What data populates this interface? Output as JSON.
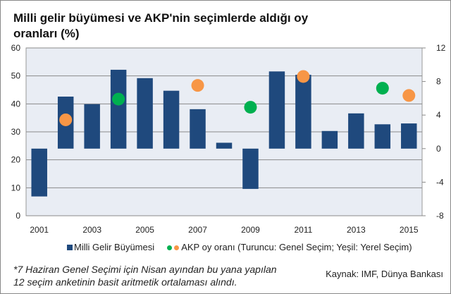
{
  "chart_data": {
    "type": "bar",
    "title": "Milli  gelir büyümesi ve AKP'nin seçimlerde aldığı oy oranları (%)",
    "categories": [
      "2001",
      "2002",
      "2003",
      "2004",
      "2005",
      "2006",
      "2007",
      "2008",
      "2009",
      "2010",
      "2011",
      "2012",
      "2013",
      "2014",
      "2015"
    ],
    "x_tick_labels": [
      "2001",
      "2003",
      "2005",
      "2007",
      "2009",
      "2011",
      "2013",
      "2015"
    ],
    "left_axis": {
      "ylim": [
        0,
        60
      ],
      "ticks": [
        "0",
        "10",
        "20",
        "30",
        "40",
        "50",
        "60"
      ]
    },
    "right_axis": {
      "ylim": [
        -8,
        12
      ],
      "ticks": [
        "-8",
        "-4",
        "0",
        "4",
        "8",
        "12"
      ]
    },
    "grid": true,
    "series": [
      {
        "name": "Milli Gelir Büyümesi",
        "type": "bar",
        "axis": "right",
        "color": "#1F497D",
        "values": [
          -5.7,
          6.2,
          5.3,
          9.4,
          8.4,
          6.9,
          4.7,
          0.7,
          -4.8,
          9.2,
          8.8,
          2.1,
          4.2,
          2.9,
          3.0
        ]
      },
      {
        "name": "AKP oy oranı (Genel Seçim)",
        "type": "scatter",
        "axis": "left",
        "color": "#F79646",
        "points": [
          {
            "x": "2002",
            "y": 34.3
          },
          {
            "x": "2007",
            "y": 46.6
          },
          {
            "x": "2011",
            "y": 49.8
          },
          {
            "x": "2015",
            "y": 43.0
          }
        ]
      },
      {
        "name": "AKP oy oranı (Yerel Seçim)",
        "type": "scatter",
        "axis": "left",
        "color": "#00B050",
        "points": [
          {
            "x": "2004",
            "y": 41.7
          },
          {
            "x": "2009",
            "y": 38.8
          },
          {
            "x": "2014",
            "y": 45.6
          }
        ]
      }
    ],
    "legend": {
      "position": "bottom",
      "bar_label": "Milli Gelir Büyümesi",
      "dot_label": "AKP oy oranı (Turuncu: Genel Seçim; Yeşil: Yerel Seçim)"
    }
  },
  "note": {
    "line1": "*7 Haziran Genel Seçimi için Nisan ayından bu yana yapılan",
    "line2": "12 seçim anketinin basit aritmetik ortalaması alındı."
  },
  "source": "Kaynak: IMF, Dünya Bankası",
  "colors": {
    "plot_bg": "#E9EDF4",
    "bar": "#1F497D",
    "orange": "#F79646",
    "green": "#00B050"
  }
}
